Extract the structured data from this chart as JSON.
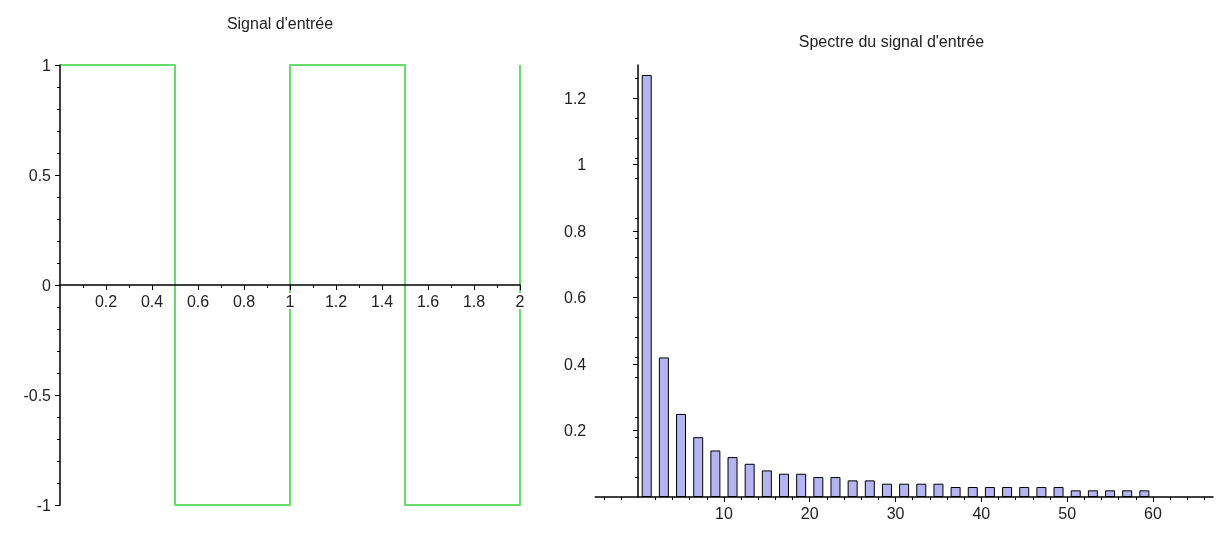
{
  "chart_data": [
    {
      "type": "line",
      "title": "Signal d'entrée",
      "x": [
        0,
        0.5,
        0.5,
        1,
        1,
        1.5,
        1.5,
        2,
        2
      ],
      "series": [
        {
          "color": "#66dd66",
          "values": [
            1,
            1,
            -1,
            -1,
            1,
            1,
            -1,
            -1,
            1
          ]
        }
      ],
      "xlim": [
        0,
        2
      ],
      "xticks": [
        0.2,
        0.4,
        0.6,
        0.8,
        1,
        1.2,
        1.4,
        1.6,
        1.8,
        2
      ],
      "ylim": [
        -1,
        1
      ],
      "yticks": [
        -1,
        -0.5,
        0,
        0.5,
        1
      ],
      "grid": false,
      "marker": "none",
      "line_style": "solid"
    },
    {
      "type": "bar",
      "title": "Spectre du signal d'entrée",
      "x": [
        1,
        3,
        5,
        7,
        9,
        11,
        13,
        15,
        17,
        19,
        21,
        23,
        25,
        27,
        29,
        31,
        33,
        35,
        37,
        39,
        41,
        43,
        45,
        47,
        49,
        51,
        53,
        55,
        57,
        59
      ],
      "series": [
        {
          "color": "#b4b4f0",
          "values": [
            1.27,
            0.42,
            0.25,
            0.18,
            0.14,
            0.12,
            0.1,
            0.08,
            0.07,
            0.07,
            0.06,
            0.06,
            0.05,
            0.05,
            0.04,
            0.04,
            0.04,
            0.04,
            0.03,
            0.03,
            0.03,
            0.03,
            0.03,
            0.03,
            0.03,
            0.02,
            0.02,
            0.02,
            0.02,
            0.02
          ]
        }
      ],
      "xlim": [
        -5,
        67
      ],
      "xticks": [
        10,
        20,
        30,
        40,
        50,
        60
      ],
      "ylim": [
        0,
        1.3
      ],
      "yticks": [
        0.2,
        0.4,
        0.6,
        0.8,
        1,
        1.2
      ],
      "grid": false
    }
  ]
}
